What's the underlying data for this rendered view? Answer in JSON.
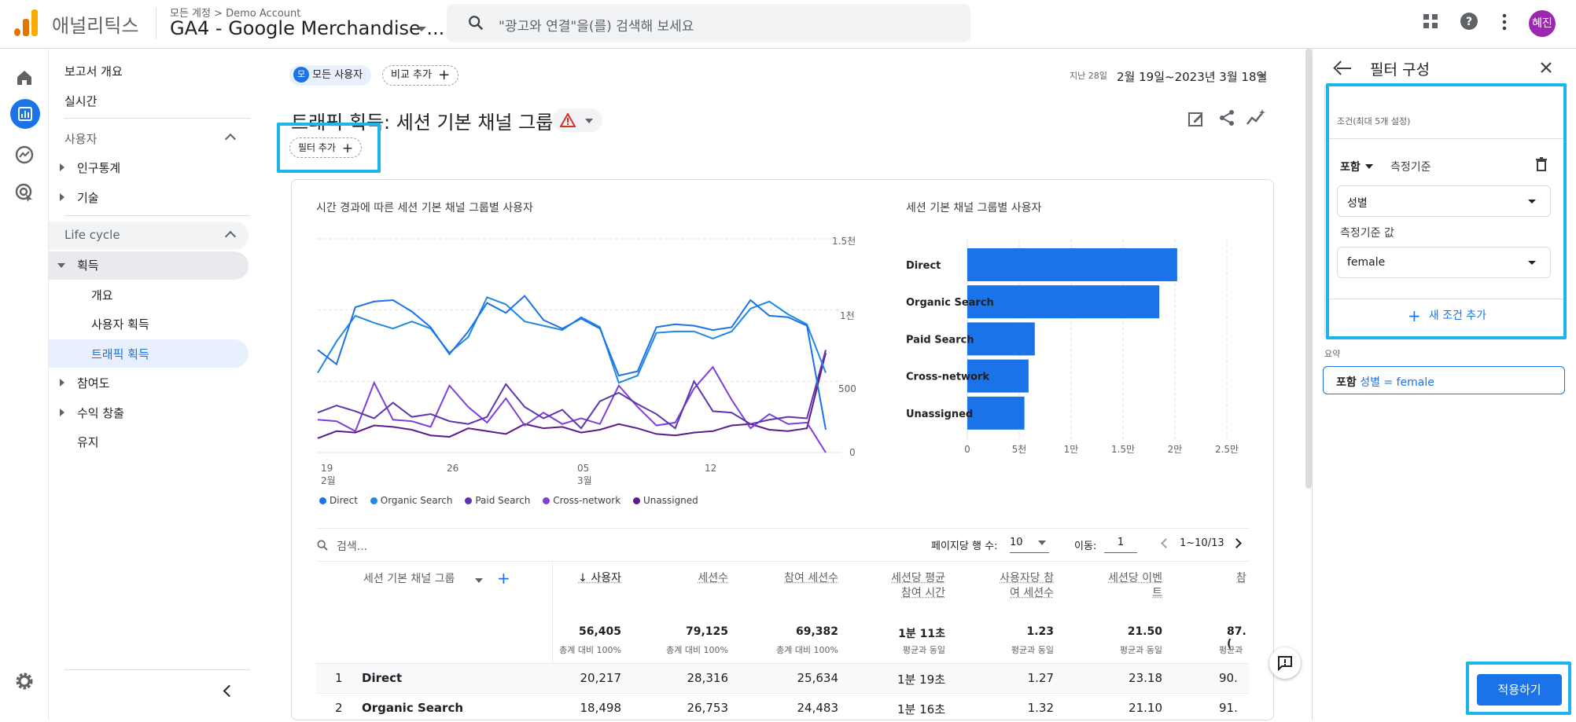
{
  "app": {
    "brand": "애널리틱스",
    "account_crumb": "모든 계정 > Demo Account",
    "property": "GA4 - Google Merchandise ...",
    "search_placeholder": "\"광고와 연결\"을(를) 검색해 보세요",
    "avatar_initials": "혜진"
  },
  "nav": {
    "overview": "보고서 개요",
    "realtime": "실시간",
    "user_section": "사용자",
    "demographics": "인구통계",
    "tech": "기술",
    "lifecycle_section": "Life cycle",
    "acquisition": "획득",
    "acq_overview": "개요",
    "user_acq": "사용자 획득",
    "traffic_acq": "트래픽 획득",
    "engagement": "참여도",
    "monetization": "수익 창출",
    "retention": "유지"
  },
  "header": {
    "segment_avatar": "모",
    "segment_label": "모든 사용자",
    "compare_label": "비교 추가",
    "date_prefix": "지난 28일",
    "date_range": "2월 19일~2023년 3월 18일",
    "title": "트래픽 획득: 세션 기본 채널 그룹",
    "add_filter": "필터 추가"
  },
  "line_chart": {
    "title": "시간 경과에 따른 세션 기본 채널 그룹별 사용자",
    "y_ticks": [
      "1.5천",
      "1천",
      "500",
      "0"
    ],
    "x_ticks": [
      {
        "day": "19",
        "month": "2월"
      },
      {
        "day": "26",
        "month": ""
      },
      {
        "day": "05",
        "month": "3월"
      },
      {
        "day": "12",
        "month": ""
      }
    ],
    "legend": [
      {
        "name": "Direct",
        "color": "#1a73e8"
      },
      {
        "name": "Organic Search",
        "color": "#1e88e5"
      },
      {
        "name": "Paid Search",
        "color": "#5e35b1"
      },
      {
        "name": "Cross-network",
        "color": "#7e3fd9"
      },
      {
        "name": "Unassigned",
        "color": "#5c1a8a"
      }
    ]
  },
  "bar_chart": {
    "title": "세션 기본 채널 그룹별 사용자",
    "x_ticks": [
      "0",
      "5천",
      "1만",
      "1.5만",
      "2만",
      "2.5만"
    ]
  },
  "chart_data": [
    {
      "type": "line",
      "title": "시간 경과에 따른 세션 기본 채널 그룹별 사용자",
      "x": [
        "2/19",
        "2/20",
        "2/21",
        "2/22",
        "2/23",
        "2/24",
        "2/25",
        "2/26",
        "2/27",
        "2/28",
        "3/1",
        "3/2",
        "3/3",
        "3/4",
        "3/5",
        "3/6",
        "3/7",
        "3/8",
        "3/9",
        "3/10",
        "3/11",
        "3/12",
        "3/13",
        "3/14",
        "3/15",
        "3/16",
        "3/17",
        "3/18"
      ],
      "ylim": [
        0,
        1500
      ],
      "series": [
        {
          "name": "Direct",
          "values": [
            720,
            620,
            1020,
            1060,
            1070,
            990,
            880,
            690,
            850,
            1050,
            980,
            1100,
            930,
            870,
            940,
            870,
            540,
            570,
            880,
            900,
            890,
            860,
            880,
            1070,
            960,
            950,
            890,
            160
          ]
        },
        {
          "name": "Organic Search",
          "values": [
            560,
            780,
            960,
            910,
            870,
            920,
            870,
            700,
            810,
            1090,
            1040,
            920,
            890,
            860,
            950,
            880,
            490,
            540,
            840,
            850,
            850,
            800,
            850,
            1010,
            1060,
            970,
            900,
            560
          ]
        },
        {
          "name": "Paid Search",
          "values": [
            280,
            330,
            290,
            240,
            350,
            250,
            270,
            220,
            200,
            250,
            480,
            320,
            240,
            300,
            170,
            360,
            420,
            340,
            270,
            170,
            500,
            290,
            280,
            200,
            230,
            250,
            240,
            720
          ]
        },
        {
          "name": "Cross-network",
          "values": [
            230,
            220,
            150,
            490,
            230,
            220,
            180,
            470,
            320,
            210,
            380,
            190,
            280,
            200,
            240,
            200,
            470,
            320,
            190,
            210,
            450,
            600,
            370,
            170,
            270,
            200,
            210,
            0
          ]
        },
        {
          "name": "Unassigned",
          "values": [
            100,
            150,
            140,
            190,
            180,
            160,
            120,
            110,
            170,
            150,
            130,
            200,
            170,
            180,
            140,
            160,
            200,
            170,
            130,
            120,
            140,
            150,
            190,
            200,
            160,
            150,
            170,
            700
          ]
        }
      ]
    },
    {
      "type": "bar",
      "title": "세션 기본 채널 그룹별 사용자",
      "categories": [
        "Direct",
        "Organic Search",
        "Paid Search",
        "Cross-network",
        "Unassigned"
      ],
      "values": [
        20217,
        18498,
        6500,
        5900,
        5500
      ],
      "xlim": [
        0,
        25000
      ]
    }
  ],
  "table": {
    "search_placeholder": "검색...",
    "rows_per_page_label": "페이지당 행 수:",
    "rows_per_page": "10",
    "goto_label": "이동:",
    "goto_value": "1",
    "page_range": "1~10/13",
    "dim_header": "세션 기본 채널 그룹",
    "columns": [
      {
        "label": "↓ 사용자",
        "total": "56,405",
        "sub": "총계 대비 100%"
      },
      {
        "label": "세션수",
        "total": "79,125",
        "sub": "총계 대비 100%"
      },
      {
        "label": "참여 세션수",
        "total": "69,382",
        "sub": "총계 대비 100%"
      },
      {
        "label": "세션당 평균\n참여 시간",
        "total": "1분 11초",
        "sub": "평균과 동일"
      },
      {
        "label": "사용자당 참\n여 세션수",
        "total": "1.23",
        "sub": "평균과 동일"
      },
      {
        "label": "세션당 이벤\n트",
        "total": "21.50",
        "sub": "평균과 동일"
      },
      {
        "label": "참",
        "total": "87.(",
        "sub": "평균과"
      }
    ],
    "rows": [
      {
        "idx": "1",
        "name": "Direct",
        "values": [
          "20,217",
          "28,316",
          "25,634",
          "1분 19초",
          "1.27",
          "23.18",
          "90."
        ]
      },
      {
        "idx": "2",
        "name": "Organic Search",
        "values": [
          "18,498",
          "26,753",
          "24,483",
          "1분 16초",
          "1.32",
          "21.10",
          "91."
        ]
      }
    ]
  },
  "panel": {
    "title": "필터 구성",
    "conditions_label": "조건(최대 5개 설정)",
    "match_type": "포함",
    "dimension_label": "측정기준",
    "dimension_value": "성별",
    "value_label": "측정기준 값",
    "value": "female",
    "add_condition": "새 조건 추가",
    "summary_label": "요약",
    "summary_bold": "포함",
    "summary_expr": "성별 = female",
    "apply": "적용하기"
  }
}
